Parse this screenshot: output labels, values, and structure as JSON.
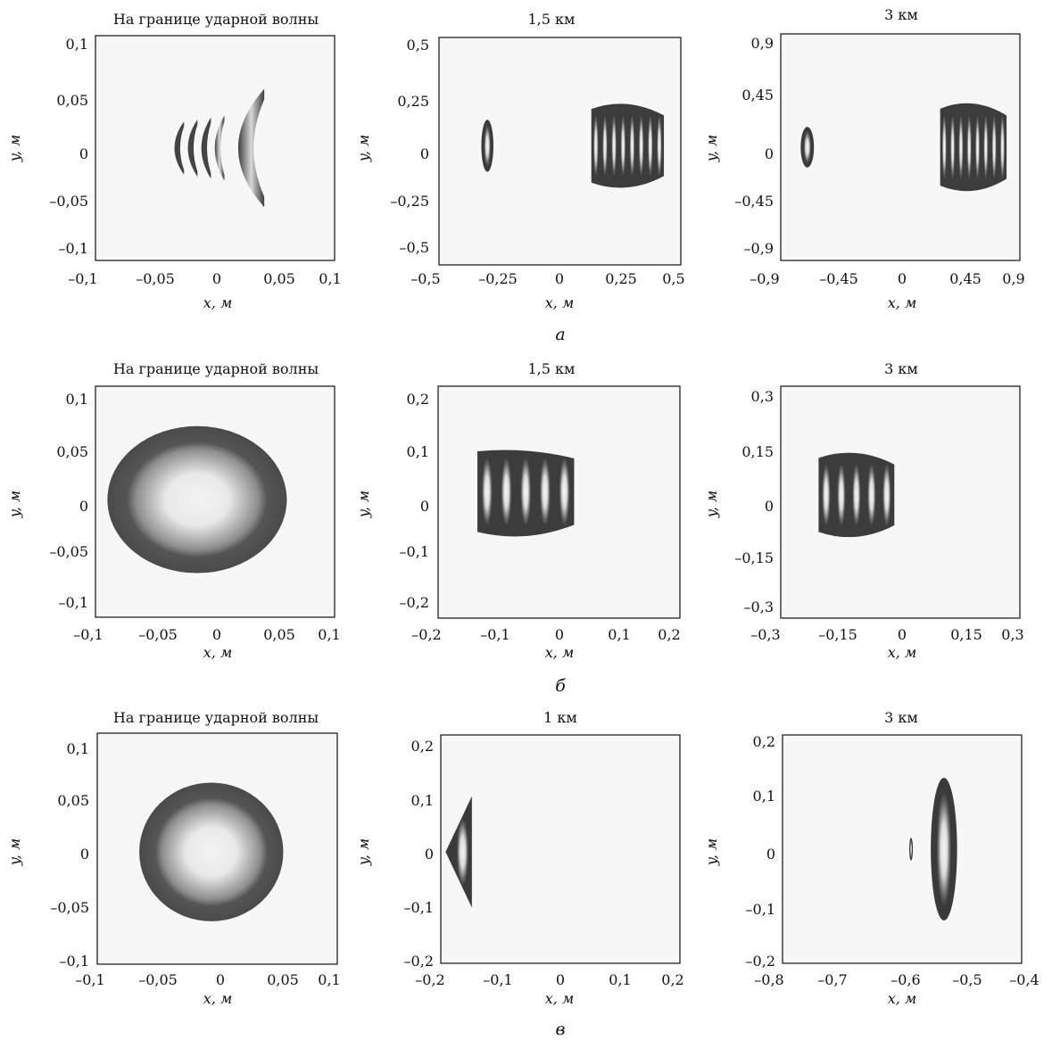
{
  "chart_data": [
    {
      "type": "heatmap",
      "row": 0,
      "col": 0,
      "title": "На границе ударной волны",
      "xlabel": "x, м",
      "ylabel": "y, м",
      "xlim": [
        -0.1,
        0.1
      ],
      "ylim": [
        -0.11,
        0.11
      ],
      "xticks": [
        -0.1,
        -0.05,
        0,
        0.05,
        0.1
      ],
      "xticklabels": [
        "–0,1",
        "–0,05",
        "0",
        "0,05",
        "0,1"
      ],
      "yticks": [
        0.1,
        0.05,
        0,
        -0.05,
        -0.1
      ],
      "yticklabels": [
        "0,1",
        "0,05",
        "0",
        "–0,05",
        "–0,1"
      ],
      "blobs": [
        {
          "shape": "crescent",
          "cx": -0.015,
          "cy": 0,
          "rx": 0.025,
          "ry": 0.032,
          "rings": 4
        },
        {
          "shape": "crescent",
          "cx": 0.025,
          "cy": 0,
          "rx": 0.017,
          "ry": 0.058,
          "rings": 1
        }
      ]
    },
    {
      "type": "heatmap",
      "row": 0,
      "col": 1,
      "title": "1,5 км",
      "xlabel": "x, м",
      "ylabel": "y, м",
      "xlim": [
        -0.5,
        0.5
      ],
      "ylim": [
        -0.55,
        0.5
      ],
      "xticks": [
        -0.5,
        -0.25,
        0,
        0.25,
        0.5
      ],
      "xticklabels": [
        "–0,5",
        "–0,25",
        "0",
        "0,25",
        "0,5"
      ],
      "yticks": [
        0.5,
        0.25,
        0,
        -0.25,
        -0.5
      ],
      "yticklabels": [
        "0,5",
        "0,25",
        "0",
        "–0,25",
        "–0,5"
      ],
      "blobs": [
        {
          "shape": "ellipse",
          "cx": -0.3,
          "cy": 0,
          "rx": 0.025,
          "ry": 0.12,
          "rings": 3
        },
        {
          "shape": "barrel",
          "cx": 0.28,
          "cy": 0,
          "rx": 0.15,
          "ry": 0.2,
          "rings": 8
        }
      ]
    },
    {
      "type": "heatmap",
      "row": 0,
      "col": 2,
      "title": "3 км",
      "xlabel": "x, м",
      "ylabel": "y, м",
      "xlim": [
        -0.9,
        0.9
      ],
      "ylim": [
        -0.95,
        0.95
      ],
      "xticks": [
        -0.9,
        -0.45,
        0,
        0.45,
        0.9
      ],
      "xticklabels": [
        "–0,9",
        "–0,45",
        "0",
        "0,45",
        "0,9"
      ],
      "yticks": [
        0.9,
        0.45,
        0,
        -0.45,
        -0.9
      ],
      "yticklabels": [
        "0,9",
        "0,45",
        "0",
        "–0,45",
        "–0,9"
      ],
      "blobs": [
        {
          "shape": "ellipse",
          "cx": -0.7,
          "cy": 0,
          "rx": 0.05,
          "ry": 0.17,
          "rings": 2
        },
        {
          "shape": "barrel",
          "cx": 0.55,
          "cy": 0,
          "rx": 0.25,
          "ry": 0.38,
          "rings": 8
        }
      ]
    },
    {
      "type": "heatmap",
      "row": 1,
      "col": 0,
      "title": "На границе ударной волны",
      "xlabel": "x, м",
      "ylabel": "y, м",
      "xlim": [
        -0.1,
        0.1
      ],
      "ylim": [
        -0.12,
        0.1
      ],
      "xticks": [
        -0.1,
        -0.05,
        0,
        0.05,
        0.1
      ],
      "xticklabels": [
        "–0,1",
        "–0,05",
        "0",
        "0,05",
        "0,1"
      ],
      "yticks": [
        0.1,
        0.05,
        0,
        -0.05,
        -0.1
      ],
      "yticklabels": [
        "0,1",
        "0,05",
        "0",
        "–0,05",
        "–0,1"
      ],
      "blobs": [
        {
          "shape": "disk",
          "cx": -0.015,
          "cy": -0.008,
          "rx": 0.075,
          "ry": 0.07,
          "rings": 1
        }
      ]
    },
    {
      "type": "heatmap",
      "row": 1,
      "col": 1,
      "title": "1,5 км",
      "xlabel": "x, м",
      "ylabel": "y, м",
      "xlim": [
        -0.2,
        0.2
      ],
      "ylim": [
        -0.24,
        0.2
      ],
      "xticks": [
        -0.2,
        -0.1,
        0,
        0.1,
        0.2
      ],
      "xticklabels": [
        "–0,2",
        "–0,1",
        "0",
        "0,1",
        "0,2"
      ],
      "yticks": [
        0.2,
        0.1,
        0,
        -0.1,
        -0.2
      ],
      "yticklabels": [
        "0,2",
        "0,1",
        "0",
        "–0,1",
        "–0,2"
      ],
      "blobs": [
        {
          "shape": "cup",
          "cx": -0.055,
          "cy": 0,
          "rx": 0.08,
          "ry": 0.09,
          "rings": 5
        }
      ]
    },
    {
      "type": "heatmap",
      "row": 1,
      "col": 2,
      "title": "3 км",
      "xlabel": "x, м",
      "ylabel": "y, м",
      "xlim": [
        -0.3,
        0.3
      ],
      "ylim": [
        -0.34,
        0.3
      ],
      "xticks": [
        -0.3,
        -0.15,
        0,
        0.15,
        0.3
      ],
      "xticklabels": [
        "–0,3",
        "–0,15",
        "0",
        "0,15",
        "0,3"
      ],
      "yticks": [
        0.3,
        0.15,
        0,
        -0.15,
        -0.3
      ],
      "yticklabels": [
        "0,3",
        "0,15",
        "0",
        "–0,15",
        "–0,3"
      ],
      "blobs": [
        {
          "shape": "barrel",
          "cx": -0.11,
          "cy": 0,
          "rx": 0.095,
          "ry": 0.12,
          "rings": 5
        }
      ]
    },
    {
      "type": "heatmap",
      "row": 2,
      "col": 0,
      "title": "На границе ударной волны",
      "xlabel": "x, м",
      "ylabel": "y, м",
      "xlim": [
        -0.1,
        0.1
      ],
      "ylim": [
        -0.1,
        0.11
      ],
      "xticks": [
        -0.1,
        -0.05,
        0,
        0.05,
        0.1
      ],
      "xticklabels": [
        "–0,1",
        "–0,05",
        "0",
        "0,05",
        "0,1"
      ],
      "yticks": [
        0.1,
        0.05,
        0,
        -0.05,
        -0.1
      ],
      "yticklabels": [
        "0,1",
        "0,05",
        "0",
        "–0,05",
        "–0,1"
      ],
      "blobs": [
        {
          "shape": "disk",
          "cx": -0.005,
          "cy": 0.002,
          "rx": 0.06,
          "ry": 0.063,
          "rings": 1
        }
      ]
    },
    {
      "type": "heatmap",
      "row": 2,
      "col": 1,
      "title": "1 км",
      "xlabel": "x, м",
      "ylabel": "y, м",
      "xlim": [
        -0.2,
        0.2
      ],
      "ylim": [
        -0.2,
        0.21
      ],
      "xticks": [
        -0.2,
        -0.1,
        0,
        0.1,
        0.2
      ],
      "xticklabels": [
        "–0,2",
        "–0,1",
        "0",
        "0,1",
        "0,2"
      ],
      "yticks": [
        0.2,
        0.1,
        0,
        -0.1,
        -0.2
      ],
      "yticklabels": [
        "0,2",
        "0,1",
        "0",
        "–0,1",
        "–0,2"
      ],
      "blobs": [
        {
          "shape": "wedge",
          "cx": -0.17,
          "cy": 0,
          "rx": 0.022,
          "ry": 0.1,
          "rings": 2
        }
      ]
    },
    {
      "type": "heatmap",
      "row": 2,
      "col": 2,
      "title": "3 км",
      "xlabel": "x, м",
      "ylabel": "y, м",
      "xlim": [
        -0.8,
        -0.4
      ],
      "ylim": [
        -0.2,
        0.2
      ],
      "xticks": [
        -0.8,
        -0.7,
        -0.6,
        -0.5,
        -0.4
      ],
      "xticklabels": [
        "–0,8",
        "–0,7",
        "–0,6",
        "–0,5",
        "–0,4"
      ],
      "yticks": [
        0.2,
        0.1,
        0,
        -0.1,
        -0.2
      ],
      "yticklabels": [
        "0,2",
        "0,1",
        "0",
        "–0,1",
        "–0,2"
      ],
      "blobs": [
        {
          "shape": "ellipse",
          "cx": -0.585,
          "cy": 0,
          "rx": 0.003,
          "ry": 0.02,
          "rings": 1
        },
        {
          "shape": "ellipse",
          "cx": -0.53,
          "cy": 0,
          "rx": 0.022,
          "ry": 0.125,
          "rings": 2
        }
      ]
    }
  ],
  "row_labels": [
    "а",
    "б",
    "в"
  ]
}
